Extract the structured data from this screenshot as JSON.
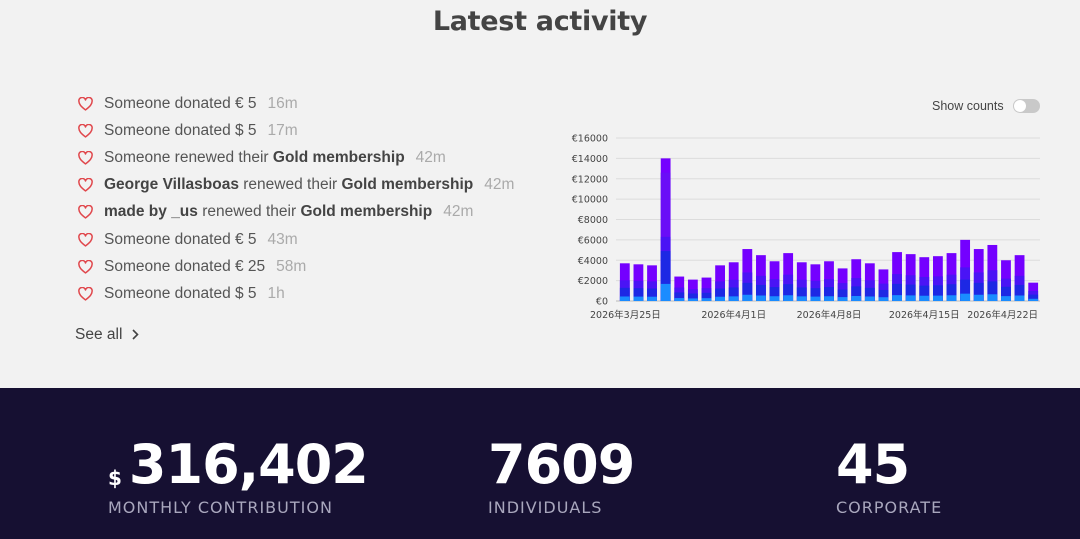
{
  "page": {
    "title": "Latest activity"
  },
  "activity": {
    "items": [
      {
        "prefix": "",
        "name": "",
        "middle": "Someone donated € 5",
        "tier": "",
        "time": "16m"
      },
      {
        "prefix": "",
        "name": "",
        "middle": "Someone donated $ 5",
        "tier": "",
        "time": "17m"
      },
      {
        "prefix": "",
        "name": "",
        "middle": "Someone renewed their ",
        "tier": "Gold membership",
        "time": "42m"
      },
      {
        "prefix": "",
        "name": "George Villasboas",
        "middle": " renewed their ",
        "tier": "Gold membership",
        "time": "42m"
      },
      {
        "prefix": "",
        "name": "made by _us",
        "middle": " renewed their ",
        "tier": "Gold membership",
        "time": "42m"
      },
      {
        "prefix": "",
        "name": "",
        "middle": "Someone donated € 5",
        "tier": "",
        "time": "43m"
      },
      {
        "prefix": "",
        "name": "",
        "middle": "Someone donated € 25",
        "tier": "",
        "time": "58m"
      },
      {
        "prefix": "",
        "name": "",
        "middle": "Someone donated $ 5",
        "tier": "",
        "time": "1h"
      }
    ],
    "see_all_label": "See all",
    "heart_icon": "heart-outline-icon",
    "heart_color": "#e0474c"
  },
  "toggle": {
    "label": "Show counts",
    "on": false
  },
  "chart_data": {
    "type": "bar",
    "stacked": true,
    "ylim": [
      0,
      16000
    ],
    "yticks": [
      "€0",
      "€2000",
      "€4000",
      "€6000",
      "€8000",
      "€10000",
      "€12000",
      "€14000",
      "€16000"
    ],
    "ytick_values": [
      0,
      2000,
      4000,
      6000,
      8000,
      10000,
      12000,
      14000,
      16000
    ],
    "xtick_labels": [
      "2026年3月25日",
      "2026年4月1日",
      "2026年4月8日",
      "2026年4月15日",
      "2026年4月22日"
    ],
    "xtick_index": [
      1,
      8,
      15,
      22,
      29
    ],
    "values": [
      3700,
      3600,
      3500,
      14000,
      2400,
      2100,
      2300,
      3500,
      3800,
      5100,
      4500,
      3900,
      4700,
      3800,
      3600,
      3900,
      3200,
      4100,
      3700,
      3100,
      4800,
      4600,
      4300,
      4400,
      4700,
      6000,
      5100,
      5500,
      4000,
      4500,
      1800
    ],
    "grid": true,
    "legend": "none",
    "colors": {
      "top": "#7400ff",
      "mid": "#4a14f5",
      "low": "#1d28e4",
      "base": "#1a8cff"
    }
  },
  "stats": [
    {
      "currency": "$",
      "value": "316,402",
      "label": "MONTHLY CONTRIBUTION"
    },
    {
      "currency": "",
      "value": "7609",
      "label": "INDIVIDUALS"
    },
    {
      "currency": "",
      "value": "45",
      "label": "CORPORATE"
    }
  ]
}
